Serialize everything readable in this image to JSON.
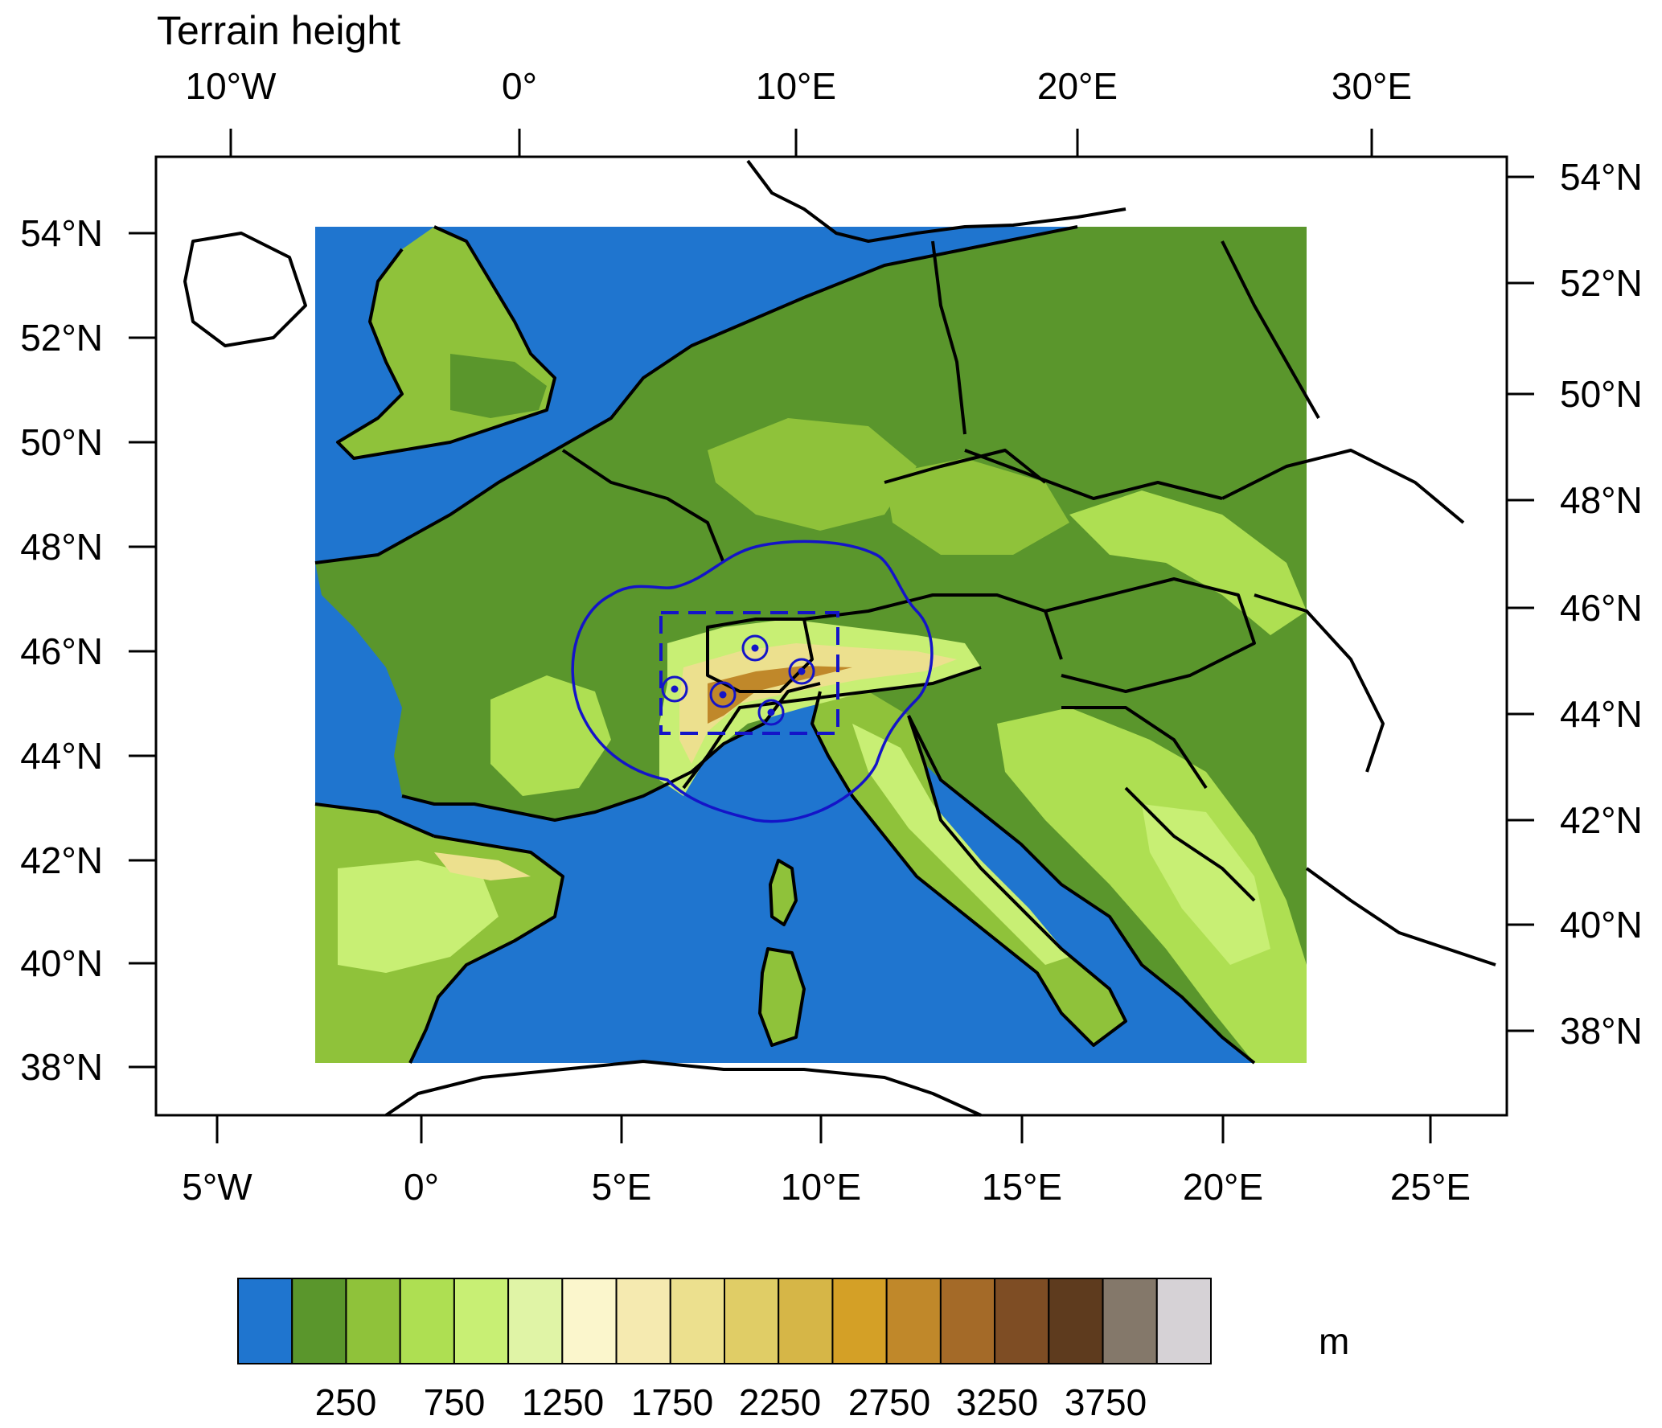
{
  "title": "Terrain height",
  "top_lon_labels": [
    "10°W",
    "0°",
    "10°E",
    "20°E",
    "30°E"
  ],
  "left_lat_labels": [
    "54°N",
    "52°N",
    "50°N",
    "48°N",
    "46°N",
    "44°N",
    "42°N",
    "40°N",
    "38°N"
  ],
  "right_lat_labels": [
    "54°N",
    "52°N",
    "50°N",
    "48°N",
    "46°N",
    "44°N",
    "42°N",
    "40°N",
    "38°N"
  ],
  "bottom_lon_labels": [
    "5°W",
    "0°",
    "5°E",
    "10°E",
    "15°E",
    "20°E",
    "25°E"
  ],
  "colorbar": {
    "unit": "m",
    "labels": [
      "250",
      "750",
      "1250",
      "1750",
      "2250",
      "2750",
      "3250",
      "3750"
    ],
    "colors": [
      "#1f75cf",
      "#5a962c",
      "#8fc23a",
      "#aedf52",
      "#c8ef74",
      "#e0f4a6",
      "#fbf6cc",
      "#f5eab0",
      "#ece08e",
      "#e0cd66",
      "#d6b647",
      "#d4a026",
      "#c0882a",
      "#a46a28",
      "#7e4d24",
      "#5e3b1e",
      "#84786a",
      "#d6d2d6"
    ]
  },
  "terrain_colors": {
    "water": "#1f75cf",
    "lowland": "#5a962c",
    "hills": "#8fc23a",
    "uplands": "#aedf52",
    "highlands": "#c8ef74",
    "mountains": "#ece08e",
    "peaks": "#c0882a"
  },
  "domain_colors": {
    "outer": "#1414c8",
    "inner_dashed": "#1414c8"
  }
}
